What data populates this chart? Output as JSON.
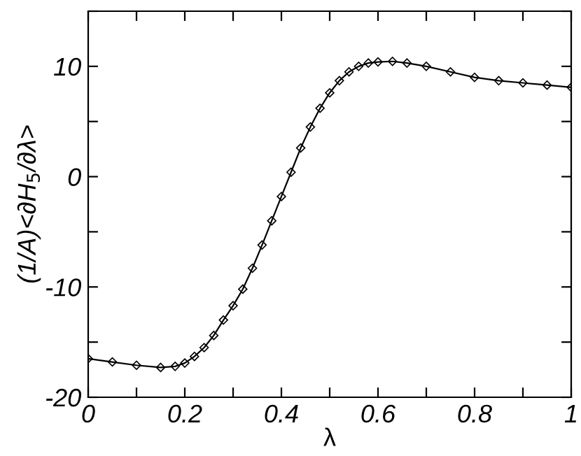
{
  "chart_data": {
    "type": "line",
    "xlabel": "λ",
    "ylabel": "(1/A)<∂H$_{5}$/∂λ>",
    "xlim": [
      0,
      1
    ],
    "ylim": [
      -20,
      15
    ],
    "xticks": [
      0,
      {
        "value": 0.1,
        "label": null
      },
      0.2,
      {
        "value": 0.3,
        "label": null
      },
      0.4,
      {
        "value": 0.5,
        "label": null
      },
      0.6,
      {
        "value": 0.7,
        "label": null
      },
      0.8,
      {
        "value": 0.9,
        "label": null
      },
      1
    ],
    "yticks": [
      -20,
      {
        "value": -15,
        "label": null
      },
      -10,
      {
        "value": -5,
        "label": null
      },
      0,
      {
        "value": 5,
        "label": null
      },
      10,
      {
        "value": 15,
        "label": null
      }
    ],
    "grid": false,
    "marker": "diamond",
    "line_style": "solid",
    "series": [
      {
        "color": "#000000",
        "x": [
          0,
          0.05,
          0.1,
          0.15,
          0.18,
          0.2,
          0.22,
          0.24,
          0.26,
          0.28,
          0.3,
          0.32,
          0.34,
          0.36,
          0.38,
          0.4,
          0.42,
          0.44,
          0.46,
          0.48,
          0.5,
          0.52,
          0.54,
          0.56,
          0.58,
          0.6,
          0.63,
          0.66,
          0.7,
          0.75,
          0.8,
          0.85,
          0.9,
          0.95,
          1
        ],
        "values": [
          -16.5,
          -16.8,
          -17.1,
          -17.3,
          -17.2,
          -16.9,
          -16.3,
          -15.5,
          -14.4,
          -13.0,
          -11.7,
          -10.2,
          -8.3,
          -6.2,
          -4.0,
          -1.8,
          0.4,
          2.6,
          4.5,
          6.2,
          7.6,
          8.7,
          9.5,
          10.0,
          10.3,
          10.4,
          10.45,
          10.3,
          10.0,
          9.5,
          9.0,
          8.7,
          8.5,
          8.3,
          8.1
        ]
      }
    ]
  }
}
